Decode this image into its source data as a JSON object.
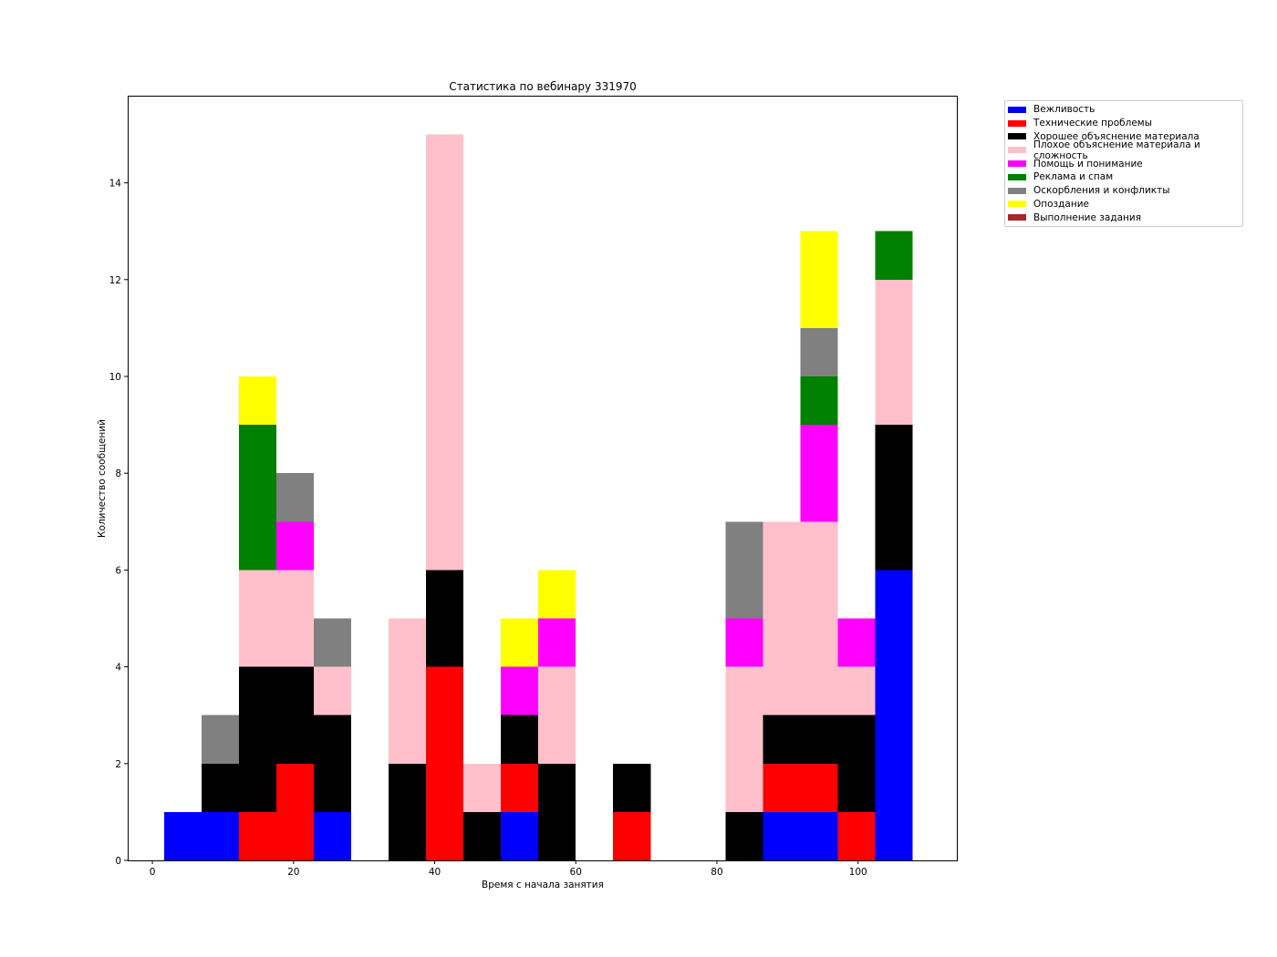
{
  "chart_data": {
    "type": "bar",
    "stacked": true,
    "title": "Статистика по вебинару 331970",
    "xlabel": "Время с начала занятия",
    "ylabel": "Количество сообщений",
    "xlim": [
      -3.5,
      114
    ],
    "ylim": [
      0,
      15.8
    ],
    "xticks": [
      0,
      20,
      40,
      60,
      80,
      100
    ],
    "yticks": [
      0,
      2,
      4,
      6,
      8,
      10,
      12,
      14
    ],
    "bin_width": 5.3,
    "bin_starts": [
      1.7,
      7.0,
      12.3,
      17.6,
      22.9,
      28.2,
      33.5,
      38.8,
      44.1,
      49.4,
      54.7,
      60.0,
      65.3,
      70.6,
      75.9,
      81.2,
      86.5,
      91.8,
      97.1,
      102.4
    ],
    "legend_position": "outside-top-right",
    "grid": false,
    "series": [
      {
        "name": "Вежливость",
        "color": "#0000ff",
        "values": [
          1,
          1,
          0,
          0,
          1,
          0,
          0,
          0,
          0,
          1,
          0,
          0,
          0,
          0,
          0,
          0,
          1,
          1,
          0,
          6
        ]
      },
      {
        "name": "Технические проблемы",
        "color": "#ff0000",
        "values": [
          0,
          0,
          1,
          2,
          0,
          0,
          0,
          4,
          0,
          1,
          0,
          0,
          1,
          0,
          0,
          0,
          1,
          1,
          1,
          0
        ]
      },
      {
        "name": "Хорошее объяснение материала",
        "color": "#000000",
        "values": [
          0,
          1,
          3,
          2,
          2,
          0,
          2,
          2,
          1,
          1,
          2,
          0,
          1,
          0,
          0,
          1,
          1,
          1,
          2,
          3
        ]
      },
      {
        "name": "Плохое объяснение материала и сложность",
        "color": "#ffc0cb",
        "values": [
          0,
          0,
          2,
          2,
          1,
          0,
          3,
          9,
          1,
          0,
          2,
          0,
          0,
          0,
          0,
          3,
          4,
          4,
          1,
          3
        ]
      },
      {
        "name": "Помощь и понимание",
        "color": "#ff00ff",
        "values": [
          0,
          0,
          0,
          1,
          0,
          0,
          0,
          0,
          0,
          1,
          1,
          0,
          0,
          0,
          0,
          1,
          0,
          2,
          1,
          0
        ]
      },
      {
        "name": "Реклама и спам",
        "color": "#008000",
        "values": [
          0,
          0,
          3,
          0,
          0,
          0,
          0,
          0,
          0,
          0,
          0,
          0,
          0,
          0,
          0,
          0,
          0,
          1,
          0,
          1
        ]
      },
      {
        "name": "Оскорбления и конфликты",
        "color": "#808080",
        "values": [
          0,
          1,
          0,
          1,
          1,
          0,
          0,
          0,
          0,
          0,
          0,
          0,
          0,
          0,
          0,
          2,
          0,
          1,
          0,
          0
        ]
      },
      {
        "name": "Опоздание",
        "color": "#ffff00",
        "values": [
          0,
          0,
          1,
          0,
          0,
          0,
          0,
          0,
          0,
          1,
          1,
          0,
          0,
          0,
          0,
          0,
          0,
          2,
          0,
          0
        ]
      },
      {
        "name": "Выполнение задания",
        "color": "#a52a2a",
        "values": [
          0,
          0,
          0,
          0,
          0,
          0,
          0,
          0,
          0,
          0,
          0,
          0,
          0,
          0,
          0,
          0,
          0,
          0,
          0,
          0
        ]
      }
    ]
  }
}
